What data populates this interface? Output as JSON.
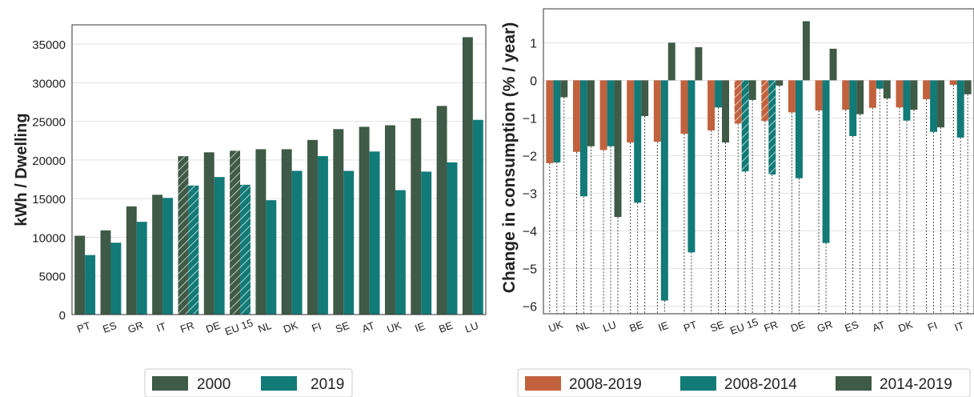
{
  "colors": {
    "dark_green": "#3f5a46",
    "teal": "#127a77",
    "orange": "#c1613d",
    "grid": "#e3e3e3",
    "axis": "#333333"
  },
  "chart_data": [
    {
      "type": "bar",
      "ylabel": "kWh / Dwelling",
      "xlabel": "",
      "ylim": [
        0,
        37500
      ],
      "yticks": [
        0,
        5000,
        10000,
        15000,
        20000,
        25000,
        30000,
        35000
      ],
      "grid": true,
      "legend_position": "bottom-center",
      "categories": [
        "PT",
        "ES",
        "GR",
        "IT",
        "FR",
        "DE",
        "EU 15",
        "NL",
        "DK",
        "FI",
        "SE",
        "AT",
        "UK",
        "IE",
        "BE",
        "LU"
      ],
      "hatched_categories": [
        "FR",
        "EU 15"
      ],
      "series": [
        {
          "name": "2000",
          "color": "#3f5a46",
          "values": [
            10200,
            10900,
            14000,
            15500,
            20500,
            21000,
            21200,
            21400,
            21400,
            22600,
            24000,
            24300,
            24500,
            25400,
            27000,
            35900
          ]
        },
        {
          "name": "2019",
          "color": "#127a77",
          "values": [
            7700,
            9300,
            12000,
            15100,
            16700,
            17800,
            16800,
            14800,
            18600,
            20500,
            18600,
            21100,
            16100,
            18500,
            19700,
            25200
          ]
        }
      ]
    },
    {
      "type": "bar",
      "ylabel": "Change in consumption (% / year)",
      "xlabel": "",
      "ylim": [
        -6.2,
        1.9
      ],
      "yticks": [
        -6,
        -5,
        -4,
        -3,
        -2,
        -1,
        0,
        1
      ],
      "grid": true,
      "legend_position": "bottom-center",
      "categories": [
        "UK",
        "NL",
        "LU",
        "BE",
        "IE",
        "PT",
        "SE",
        "EU 15",
        "FR",
        "DE",
        "GR",
        "ES",
        "AT",
        "DK",
        "FI",
        "IT"
      ],
      "hatched_categories": [
        "EU 15",
        "FR"
      ],
      "series": [
        {
          "name": "2008-2019",
          "color": "#c1613d",
          "values": [
            -2.2,
            -1.9,
            -1.85,
            -1.65,
            -1.63,
            -1.42,
            -1.33,
            -1.15,
            -1.08,
            -0.85,
            -0.8,
            -0.78,
            -0.73,
            -0.72,
            -0.5,
            -0.12
          ]
        },
        {
          "name": "2008-2014",
          "color": "#127a77",
          "values": [
            -2.18,
            -3.08,
            -1.75,
            -3.25,
            -5.85,
            -4.57,
            -0.72,
            -2.42,
            -2.5,
            -2.6,
            -4.32,
            -1.48,
            -0.22,
            -1.07,
            -1.37,
            -1.52
          ]
        },
        {
          "name": "2014-2019",
          "color": "#3f5a46",
          "values": [
            -0.45,
            -1.75,
            -3.63,
            -0.95,
            1.0,
            0.88,
            -1.65,
            -0.52,
            -0.14,
            1.57,
            0.84,
            -0.9,
            -0.48,
            -0.78,
            -1.25,
            -0.37
          ]
        }
      ]
    }
  ]
}
